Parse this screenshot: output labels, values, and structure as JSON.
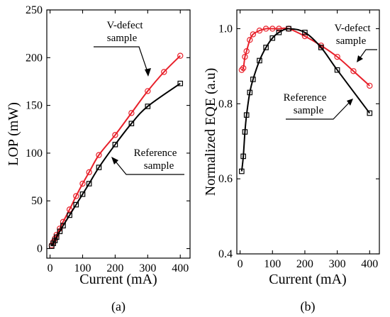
{
  "chart_data": [
    {
      "type": "line",
      "panel": "a",
      "caption": "(a)",
      "xlabel": "Current (mA)",
      "ylabel": "LOP (mW)",
      "xlim": [
        -10,
        430
      ],
      "ylim": [
        -10,
        250
      ],
      "xticks": [
        "0",
        "100",
        "200",
        "300",
        "400"
      ],
      "yticks": [
        "0",
        "50",
        "100",
        "150",
        "200",
        "250"
      ],
      "grid": false,
      "series": [
        {
          "marker": "circle",
          "color": "#e8202a",
          "x": [
            5,
            10,
            15,
            20,
            30,
            40,
            60,
            80,
            100,
            120,
            150,
            200,
            250,
            300,
            350,
            400
          ],
          "y": [
            3.5,
            7,
            10.5,
            14.5,
            21,
            28,
            41,
            55,
            68,
            80,
            98,
            119,
            142,
            165,
            185,
            202
          ]
        },
        {
          "marker": "square",
          "color": "#000000",
          "x": [
            5,
            10,
            15,
            20,
            30,
            40,
            60,
            80,
            100,
            120,
            150,
            200,
            250,
            300,
            400
          ],
          "y": [
            2.5,
            5.5,
            8.5,
            12,
            18,
            24,
            35,
            46,
            57,
            68,
            85,
            109,
            131,
            149,
            173
          ]
        }
      ],
      "annotations": [
        {
          "lines": [
            "V-defect",
            "sample"
          ]
        },
        {
          "lines": [
            "Reference",
            "sample"
          ]
        }
      ]
    },
    {
      "type": "line",
      "panel": "b",
      "caption": "(b)",
      "xlabel": "Current (mA)",
      "ylabel": "Normalized EQE (a.u)",
      "xlim": [
        -10,
        430
      ],
      "ylim": [
        0.4,
        1.05
      ],
      "xticks": [
        "0",
        "100",
        "200",
        "300",
        "400"
      ],
      "yticks": [
        "0.4",
        "0.6",
        "0.8",
        "1.0"
      ],
      "grid": false,
      "series": [
        {
          "marker": "circle",
          "color": "#e8202a",
          "x": [
            5,
            10,
            15,
            20,
            30,
            40,
            60,
            80,
            100,
            120,
            150,
            200,
            250,
            300,
            350,
            400
          ],
          "y": [
            0.89,
            0.895,
            0.925,
            0.94,
            0.97,
            0.985,
            0.995,
            1.0,
            1.0,
            1.0,
            1.0,
            0.98,
            0.955,
            0.925,
            0.887,
            0.848
          ]
        },
        {
          "marker": "square",
          "color": "#000000",
          "x": [
            5,
            10,
            15,
            20,
            30,
            40,
            60,
            80,
            100,
            120,
            150,
            200,
            250,
            300,
            400
          ],
          "y": [
            0.62,
            0.66,
            0.725,
            0.77,
            0.83,
            0.865,
            0.915,
            0.95,
            0.975,
            0.99,
            1.0,
            0.99,
            0.95,
            0.89,
            0.775
          ]
        }
      ],
      "annotations": [
        {
          "lines": [
            "V-defect",
            "sample"
          ]
        },
        {
          "lines": [
            "Reference",
            "sample"
          ]
        }
      ]
    }
  ]
}
